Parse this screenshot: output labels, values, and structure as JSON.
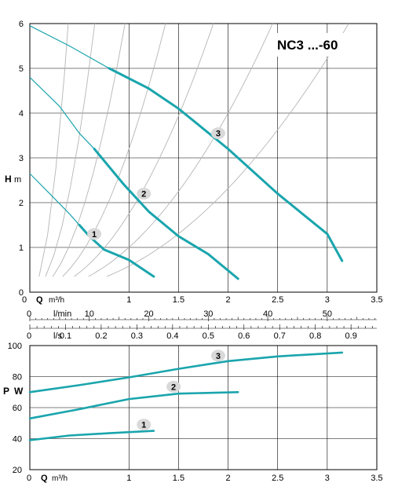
{
  "title": "NC3 ...-60",
  "h_axis": {
    "label_h": "H",
    "label_unit": "m",
    "ticks": [
      0,
      1,
      2,
      3,
      4,
      5,
      6
    ]
  },
  "flow_axes": {
    "q_m3h": {
      "label_q": "Q",
      "label_unit": "m³/h",
      "ticks": [
        "1",
        "1.5",
        "2",
        "2.5",
        "3",
        "3.5"
      ],
      "zero": "0"
    },
    "l_min": {
      "label": "l/min",
      "ticks": [
        "10",
        "20",
        "30",
        "40",
        "50"
      ],
      "zero": "0"
    },
    "l_s": {
      "label": "l/s",
      "ticks": [
        "0.1",
        "0.2",
        "0.3",
        "0.4",
        "0.5",
        "0.6",
        "0.7",
        "0.8",
        "0.9"
      ],
      "zero": "0"
    }
  },
  "pw_axis": {
    "label_p": "P",
    "label_unit": "W",
    "ticks": [
      "20",
      "40",
      "60",
      "80",
      "100"
    ]
  },
  "bottom_axis": {
    "label_q": "Q",
    "label_unit": "m³/h",
    "zero": "0",
    "ticks": [
      "1",
      "1.5",
      "2",
      "2.5",
      "3",
      "3.5"
    ]
  },
  "chart_data": [
    {
      "type": "line",
      "xlim": [
        0,
        3.5
      ],
      "ylim": [
        0,
        6
      ],
      "series": [
        {
          "name": "1",
          "thin": [
            [
              0,
              2.65
            ],
            [
              0.2,
              2.2
            ],
            [
              0.4,
              1.75
            ],
            [
              0.5,
              1.5
            ]
          ],
          "values": [
            [
              0.5,
              1.5
            ],
            [
              0.6,
              1.25
            ],
            [
              0.75,
              0.95
            ],
            [
              1.0,
              0.72
            ],
            [
              1.25,
              0.35
            ]
          ]
        },
        {
          "name": "2",
          "thin": [
            [
              0,
              4.8
            ],
            [
              0.3,
              4.15
            ],
            [
              0.5,
              3.55
            ],
            [
              0.65,
              3.2
            ]
          ],
          "values": [
            [
              0.65,
              3.2
            ],
            [
              0.95,
              2.4
            ],
            [
              1.2,
              1.8
            ],
            [
              1.5,
              1.25
            ],
            [
              1.8,
              0.85
            ],
            [
              2.1,
              0.3
            ]
          ]
        },
        {
          "name": "3",
          "thin": [
            [
              0,
              5.95
            ],
            [
              0.4,
              5.5
            ],
            [
              0.8,
              5.0
            ]
          ],
          "values": [
            [
              0.8,
              5.0
            ],
            [
              1.2,
              4.55
            ],
            [
              1.5,
              4.1
            ],
            [
              2.0,
              3.2
            ],
            [
              2.5,
              2.2
            ],
            [
              3.0,
              1.3
            ],
            [
              3.15,
              0.7
            ]
          ]
        }
      ],
      "label_positions": {
        "1": [
          0.65,
          1.3
        ],
        "2": [
          1.15,
          2.2
        ],
        "3": [
          1.9,
          3.55
        ]
      }
    },
    {
      "type": "line",
      "xlim": [
        0,
        3.5
      ],
      "ylim": [
        20,
        100
      ],
      "series": [
        {
          "name": "1",
          "values": [
            [
              0,
              39
            ],
            [
              0.4,
              42
            ],
            [
              0.8,
              43.5
            ],
            [
              1.25,
              45
            ]
          ]
        },
        {
          "name": "2",
          "values": [
            [
              0,
              53
            ],
            [
              0.5,
              59
            ],
            [
              1.0,
              65.5
            ],
            [
              1.5,
              69
            ],
            [
              2.1,
              70
            ]
          ]
        },
        {
          "name": "3",
          "values": [
            [
              0,
              70
            ],
            [
              0.5,
              74.5
            ],
            [
              1.0,
              79.5
            ],
            [
              1.5,
              85
            ],
            [
              2.0,
              90
            ],
            [
              2.5,
              93
            ],
            [
              3.15,
              95.5
            ]
          ]
        }
      ],
      "label_positions": {
        "1": [
          1.15,
          49
        ],
        "2": [
          1.45,
          73.5
        ],
        "3": [
          1.9,
          93.5
        ]
      }
    }
  ]
}
